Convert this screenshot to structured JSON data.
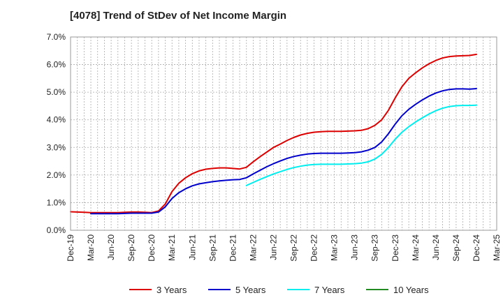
{
  "chart_data": {
    "type": "line",
    "title": "[4078]  Trend of StDev of Net Income Margin",
    "xlabel": "",
    "ylabel": "",
    "ylim": [
      0,
      7
    ],
    "y_ticks": [
      "0.0%",
      "1.0%",
      "2.0%",
      "3.0%",
      "4.0%",
      "5.0%",
      "6.0%",
      "7.0%"
    ],
    "x_ticks": [
      "Dec-19",
      "Mar-20",
      "Jun-20",
      "Sep-20",
      "Dec-20",
      "Mar-21",
      "Jun-21",
      "Sep-21",
      "Dec-21",
      "Mar-22",
      "Jun-22",
      "Sep-22",
      "Dec-22",
      "Mar-23",
      "Jun-23",
      "Sep-23",
      "Dec-23",
      "Mar-24",
      "Jun-24",
      "Sep-24",
      "Dec-24",
      "Mar-25"
    ],
    "grid": true,
    "legend_position": "bottom",
    "x_start": "2019-12",
    "series": [
      {
        "name": "3 Years",
        "color": "#dd0000",
        "points": [
          [
            "2019-12",
            0.67
          ],
          [
            "2020-01",
            0.66
          ],
          [
            "2020-02",
            0.65
          ],
          [
            "2020-03",
            0.64
          ],
          [
            "2020-04",
            0.64
          ],
          [
            "2020-05",
            0.64
          ],
          [
            "2020-06",
            0.64
          ],
          [
            "2020-07",
            0.64
          ],
          [
            "2020-08",
            0.65
          ],
          [
            "2020-09",
            0.66
          ],
          [
            "2020-10",
            0.66
          ],
          [
            "2020-11",
            0.65
          ],
          [
            "2020-12",
            0.64
          ],
          [
            "2021-01",
            0.7
          ],
          [
            "2021-02",
            0.95
          ],
          [
            "2021-03",
            1.4
          ],
          [
            "2021-04",
            1.7
          ],
          [
            "2021-05",
            1.9
          ],
          [
            "2021-06",
            2.05
          ],
          [
            "2021-07",
            2.15
          ],
          [
            "2021-08",
            2.21
          ],
          [
            "2021-09",
            2.24
          ],
          [
            "2021-10",
            2.26
          ],
          [
            "2021-11",
            2.26
          ],
          [
            "2021-12",
            2.24
          ],
          [
            "2022-01",
            2.22
          ],
          [
            "2022-02",
            2.28
          ],
          [
            "2022-03",
            2.48
          ],
          [
            "2022-04",
            2.66
          ],
          [
            "2022-05",
            2.83
          ],
          [
            "2022-06",
            3.0
          ],
          [
            "2022-07",
            3.12
          ],
          [
            "2022-08",
            3.25
          ],
          [
            "2022-09",
            3.36
          ],
          [
            "2022-10",
            3.45
          ],
          [
            "2022-11",
            3.51
          ],
          [
            "2022-12",
            3.55
          ],
          [
            "2023-01",
            3.57
          ],
          [
            "2023-02",
            3.58
          ],
          [
            "2023-03",
            3.58
          ],
          [
            "2023-04",
            3.58
          ],
          [
            "2023-05",
            3.59
          ],
          [
            "2023-06",
            3.6
          ],
          [
            "2023-07",
            3.62
          ],
          [
            "2023-08",
            3.68
          ],
          [
            "2023-09",
            3.8
          ],
          [
            "2023-10",
            4.0
          ],
          [
            "2023-11",
            4.35
          ],
          [
            "2023-12",
            4.8
          ],
          [
            "2024-01",
            5.2
          ],
          [
            "2024-02",
            5.5
          ],
          [
            "2024-03",
            5.7
          ],
          [
            "2024-04",
            5.88
          ],
          [
            "2024-05",
            6.03
          ],
          [
            "2024-06",
            6.15
          ],
          [
            "2024-07",
            6.24
          ],
          [
            "2024-08",
            6.29
          ],
          [
            "2024-09",
            6.31
          ],
          [
            "2024-10",
            6.32
          ],
          [
            "2024-11",
            6.33
          ],
          [
            "2024-12",
            6.37
          ]
        ]
      },
      {
        "name": "5 Years",
        "color": "#0000cc",
        "points": [
          [
            "2020-03",
            0.6
          ],
          [
            "2020-04",
            0.6
          ],
          [
            "2020-05",
            0.6
          ],
          [
            "2020-06",
            0.6
          ],
          [
            "2020-07",
            0.6
          ],
          [
            "2020-08",
            0.61
          ],
          [
            "2020-09",
            0.62
          ],
          [
            "2020-10",
            0.62
          ],
          [
            "2020-11",
            0.62
          ],
          [
            "2020-12",
            0.62
          ],
          [
            "2021-01",
            0.66
          ],
          [
            "2021-02",
            0.85
          ],
          [
            "2021-03",
            1.15
          ],
          [
            "2021-04",
            1.36
          ],
          [
            "2021-05",
            1.5
          ],
          [
            "2021-06",
            1.61
          ],
          [
            "2021-07",
            1.68
          ],
          [
            "2021-08",
            1.72
          ],
          [
            "2021-09",
            1.76
          ],
          [
            "2021-10",
            1.79
          ],
          [
            "2021-11",
            1.81
          ],
          [
            "2021-12",
            1.83
          ],
          [
            "2022-01",
            1.84
          ],
          [
            "2022-02",
            1.9
          ],
          [
            "2022-03",
            2.04
          ],
          [
            "2022-04",
            2.17
          ],
          [
            "2022-05",
            2.3
          ],
          [
            "2022-06",
            2.41
          ],
          [
            "2022-07",
            2.51
          ],
          [
            "2022-08",
            2.6
          ],
          [
            "2022-09",
            2.67
          ],
          [
            "2022-10",
            2.72
          ],
          [
            "2022-11",
            2.76
          ],
          [
            "2022-12",
            2.78
          ],
          [
            "2023-01",
            2.79
          ],
          [
            "2023-02",
            2.79
          ],
          [
            "2023-03",
            2.79
          ],
          [
            "2023-04",
            2.79
          ],
          [
            "2023-05",
            2.8
          ],
          [
            "2023-06",
            2.81
          ],
          [
            "2023-07",
            2.84
          ],
          [
            "2023-08",
            2.9
          ],
          [
            "2023-09",
            3.0
          ],
          [
            "2023-10",
            3.2
          ],
          [
            "2023-11",
            3.5
          ],
          [
            "2023-12",
            3.85
          ],
          [
            "2024-01",
            4.15
          ],
          [
            "2024-02",
            4.38
          ],
          [
            "2024-03",
            4.56
          ],
          [
            "2024-04",
            4.72
          ],
          [
            "2024-05",
            4.86
          ],
          [
            "2024-06",
            4.97
          ],
          [
            "2024-07",
            5.05
          ],
          [
            "2024-08",
            5.1
          ],
          [
            "2024-09",
            5.12
          ],
          [
            "2024-10",
            5.12
          ],
          [
            "2024-11",
            5.11
          ],
          [
            "2024-12",
            5.13
          ]
        ]
      },
      {
        "name": "7 Years",
        "color": "#00eeee",
        "points": [
          [
            "2022-02",
            1.62
          ],
          [
            "2022-03",
            1.73
          ],
          [
            "2022-04",
            1.84
          ],
          [
            "2022-05",
            1.94
          ],
          [
            "2022-06",
            2.04
          ],
          [
            "2022-07",
            2.12
          ],
          [
            "2022-08",
            2.2
          ],
          [
            "2022-09",
            2.27
          ],
          [
            "2022-10",
            2.32
          ],
          [
            "2022-11",
            2.36
          ],
          [
            "2022-12",
            2.38
          ],
          [
            "2023-01",
            2.39
          ],
          [
            "2023-02",
            2.39
          ],
          [
            "2023-03",
            2.39
          ],
          [
            "2023-04",
            2.39
          ],
          [
            "2023-05",
            2.4
          ],
          [
            "2023-06",
            2.41
          ],
          [
            "2023-07",
            2.43
          ],
          [
            "2023-08",
            2.48
          ],
          [
            "2023-09",
            2.58
          ],
          [
            "2023-10",
            2.75
          ],
          [
            "2023-11",
            3.0
          ],
          [
            "2023-12",
            3.3
          ],
          [
            "2024-01",
            3.55
          ],
          [
            "2024-02",
            3.75
          ],
          [
            "2024-03",
            3.92
          ],
          [
            "2024-04",
            4.07
          ],
          [
            "2024-05",
            4.21
          ],
          [
            "2024-06",
            4.33
          ],
          [
            "2024-07",
            4.42
          ],
          [
            "2024-08",
            4.48
          ],
          [
            "2024-09",
            4.51
          ],
          [
            "2024-10",
            4.52
          ],
          [
            "2024-11",
            4.52
          ],
          [
            "2024-12",
            4.53
          ]
        ]
      },
      {
        "name": "10 Years",
        "color": "#228b22",
        "points": []
      }
    ]
  }
}
